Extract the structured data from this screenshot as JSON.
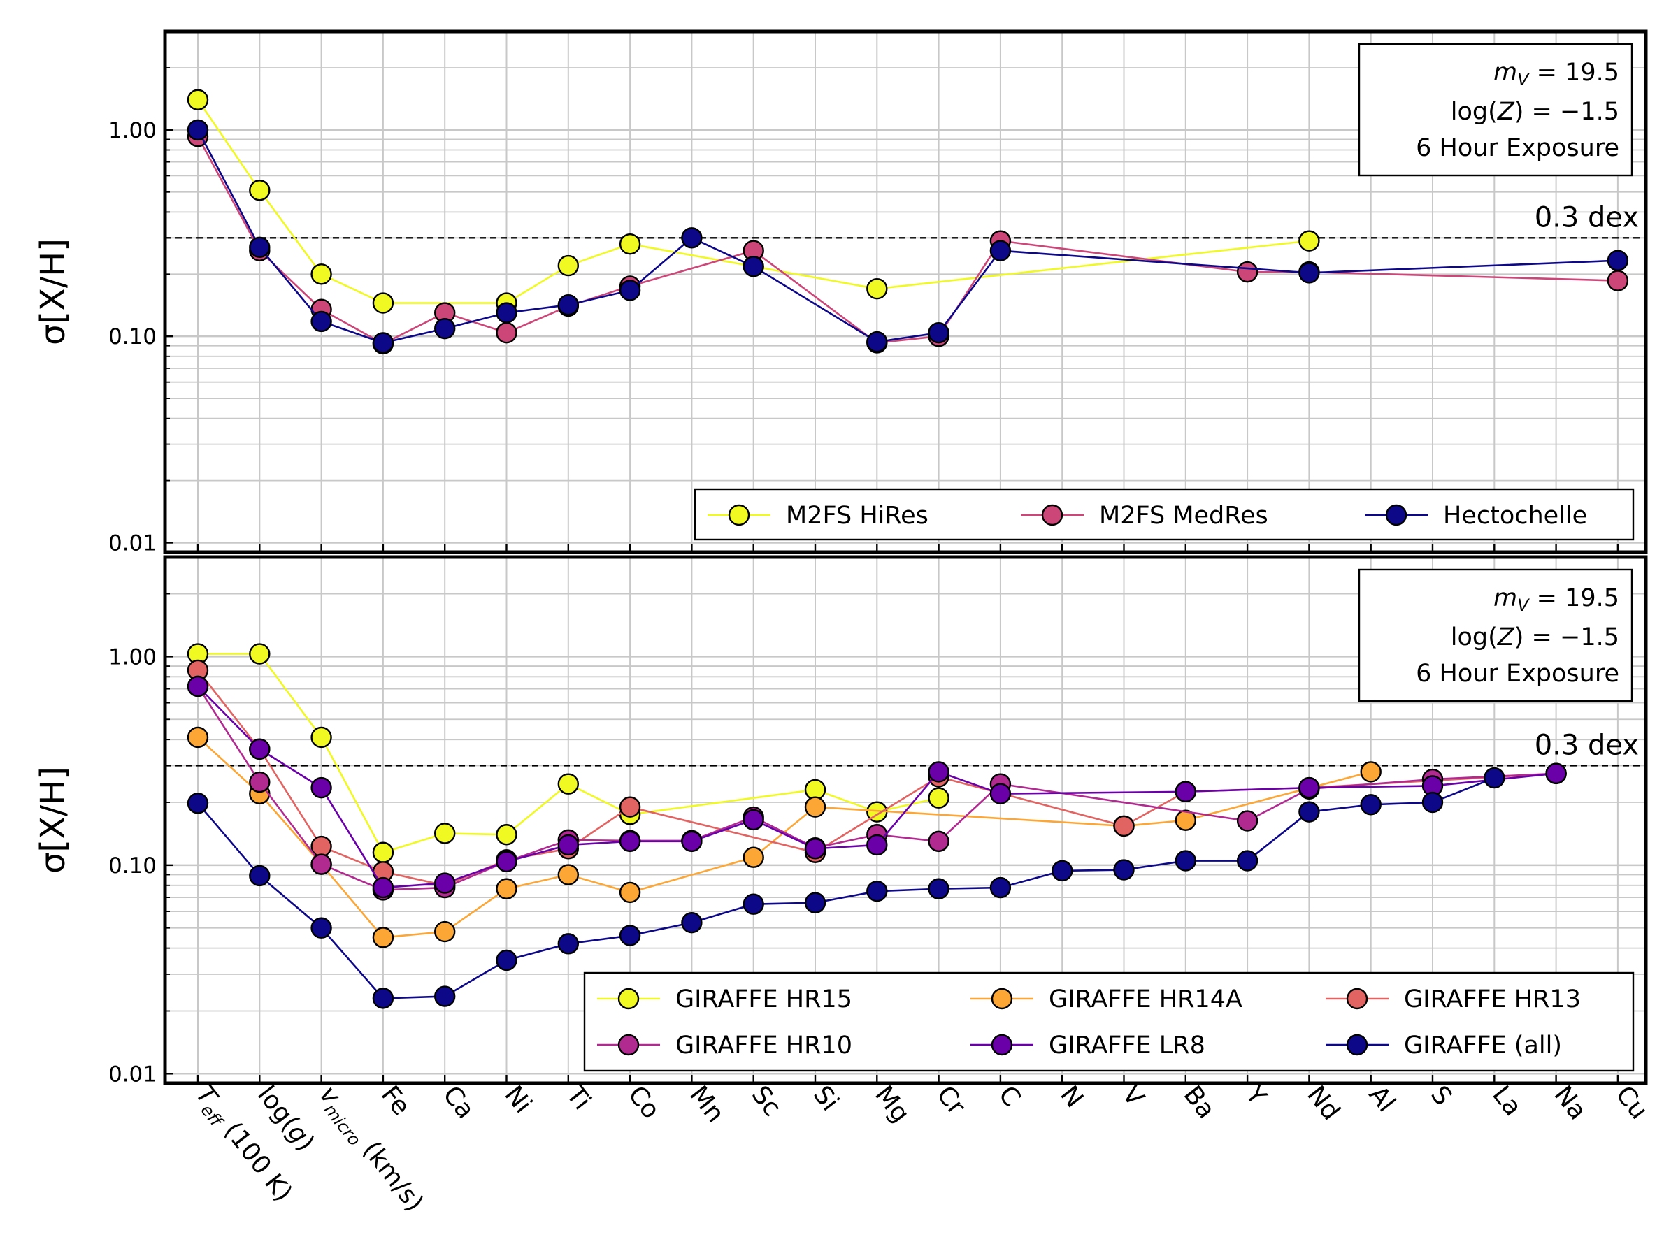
{
  "figure": {
    "x_labels": [
      {
        "main": "T",
        "sub": "eff",
        "rest": " (100 K)"
      },
      {
        "main": "log(",
        "ital": "g",
        "rest": ")"
      },
      {
        "main": "v",
        "sub": "micro",
        "rest": " (km/s)"
      },
      {
        "main": "Fe"
      },
      {
        "main": "Ca"
      },
      {
        "main": "Ni"
      },
      {
        "main": "Ti"
      },
      {
        "main": "Co"
      },
      {
        "main": "Mn"
      },
      {
        "main": "Sc"
      },
      {
        "main": "Si"
      },
      {
        "main": "Mg"
      },
      {
        "main": "Cr"
      },
      {
        "main": "C"
      },
      {
        "main": "N"
      },
      {
        "main": "V"
      },
      {
        "main": "Ba"
      },
      {
        "main": "Y"
      },
      {
        "main": "Nd"
      },
      {
        "main": "Al"
      },
      {
        "main": "S"
      },
      {
        "main": "La"
      },
      {
        "main": "Na"
      },
      {
        "main": "Cu"
      }
    ]
  },
  "chart_data": [
    {
      "type": "line",
      "ylabel": "σ[X/H]",
      "yscale": "log",
      "ylim": [
        0.009,
        3.0
      ],
      "y_ticks": [
        0.01,
        0.1,
        1.0
      ],
      "y_tick_labels": [
        "0.01",
        "0.10",
        "1.00"
      ],
      "grid": true,
      "categories": [
        "Teff (100 K)",
        "log(g)",
        "vmicro (km/s)",
        "Fe",
        "Ca",
        "Ni",
        "Ti",
        "Co",
        "Mn",
        "Sc",
        "Si",
        "Mg",
        "Cr",
        "C",
        "N",
        "V",
        "Ba",
        "Y",
        "Nd",
        "Al",
        "S",
        "La",
        "Na",
        "Cu"
      ],
      "threshold": {
        "value": 0.3,
        "label": "0.3 dex"
      },
      "info_box": {
        "line1": "= 19.5",
        "line2": "log(",
        "line2b": ") = −1.5",
        "line3": "6 Hour Exposure",
        "mag_symbol": "m",
        "mag_sub": "V",
        "z_symbol": "Z"
      },
      "legend": {
        "location": "lower-right",
        "columns": 3
      },
      "series": [
        {
          "name": "M2FS HiRes",
          "color": "#f0f921",
          "x": [
            "Teff (100 K)",
            "log(g)",
            "vmicro (km/s)",
            "Fe",
            "Ni",
            "Ti",
            "Co",
            "Mg",
            "Nd"
          ],
          "values": [
            1.4,
            0.51,
            0.2,
            0.145,
            0.145,
            0.22,
            0.28,
            0.17,
            0.29
          ]
        },
        {
          "name": "M2FS MedRes",
          "color": "#cc4778",
          "x": [
            "Teff (100 K)",
            "log(g)",
            "vmicro (km/s)",
            "Fe",
            "Ca",
            "Ni",
            "Ti",
            "Co",
            "Sc",
            "Mg",
            "Cr",
            "C",
            "Y",
            "Nd",
            "Cu"
          ],
          "values": [
            0.93,
            0.26,
            0.135,
            0.092,
            0.13,
            0.104,
            0.14,
            0.175,
            0.26,
            0.093,
            0.1,
            0.29,
            0.205,
            0.205,
            0.186
          ]
        },
        {
          "name": "Hectochelle",
          "color": "#0d0887",
          "x": [
            "Teff (100 K)",
            "log(g)",
            "vmicro (km/s)",
            "Fe",
            "Ca",
            "Ni",
            "Ti",
            "Co",
            "Mn",
            "Sc",
            "Mg",
            "Cr",
            "C",
            "Nd",
            "Cu"
          ],
          "values": [
            1.0,
            0.27,
            0.118,
            0.093,
            0.109,
            0.13,
            0.142,
            0.167,
            0.3,
            0.218,
            0.094,
            0.104,
            0.26,
            0.203,
            0.233
          ]
        }
      ]
    },
    {
      "type": "line",
      "ylabel": "σ[X/H]",
      "yscale": "log",
      "ylim": [
        0.009,
        3.0
      ],
      "y_ticks": [
        0.01,
        0.1,
        1.0
      ],
      "y_tick_labels": [
        "0.01",
        "0.10",
        "1.00"
      ],
      "grid": true,
      "categories": [
        "Teff (100 K)",
        "log(g)",
        "vmicro (km/s)",
        "Fe",
        "Ca",
        "Ni",
        "Ti",
        "Co",
        "Mn",
        "Sc",
        "Si",
        "Mg",
        "Cr",
        "C",
        "N",
        "V",
        "Ba",
        "Y",
        "Nd",
        "Al",
        "S",
        "La",
        "Na",
        "Cu"
      ],
      "threshold": {
        "value": 0.3,
        "label": "0.3 dex"
      },
      "info_box": {
        "line1": "= 19.5",
        "line2": "log(",
        "line2b": ") = −1.5",
        "line3": "6 Hour Exposure",
        "mag_symbol": "m",
        "mag_sub": "V",
        "z_symbol": "Z"
      },
      "legend": {
        "location": "lower-right",
        "columns": 3
      },
      "series": [
        {
          "name": "GIRAFFE HR15",
          "color": "#f0f921",
          "x": [
            "Teff (100 K)",
            "log(g)",
            "vmicro (km/s)",
            "Fe",
            "Ca",
            "Ni",
            "Ti",
            "Co",
            "Si",
            "Mg",
            "Cr"
          ],
          "values": [
            1.03,
            1.03,
            0.41,
            0.115,
            0.142,
            0.14,
            0.245,
            0.175,
            0.23,
            0.18,
            0.21
          ]
        },
        {
          "name": "GIRAFFE HR14A",
          "color": "#fca636",
          "x": [
            "Teff (100 K)",
            "log(g)",
            "vmicro (km/s)",
            "Fe",
            "Ca",
            "Ni",
            "Ti",
            "Co",
            "Sc",
            "Si",
            "V",
            "Ba",
            "Al"
          ],
          "values": [
            0.41,
            0.22,
            0.101,
            0.045,
            0.048,
            0.077,
            0.09,
            0.074,
            0.109,
            0.19,
            0.154,
            0.164,
            0.28
          ]
        },
        {
          "name": "GIRAFFE HR13",
          "color": "#e16462",
          "x": [
            "Teff (100 K)",
            "log(g)",
            "vmicro (km/s)",
            "Fe",
            "Ca",
            "Ni",
            "Ti",
            "Co",
            "Si",
            "Cr",
            "V",
            "Ba",
            "Nd",
            "Na"
          ],
          "values": [
            0.86,
            0.36,
            0.123,
            0.093,
            0.08,
            0.106,
            0.12,
            0.19,
            0.115,
            0.265,
            0.154,
            0.225,
            0.235,
            0.275
          ]
        },
        {
          "name": "GIRAFFE HR10",
          "color": "#b12a90",
          "x": [
            "Teff (100 K)",
            "log(g)",
            "vmicro (km/s)",
            "Fe",
            "Ca",
            "Ni",
            "Ti",
            "Co",
            "Mn",
            "Sc",
            "Si",
            "Mg",
            "Cr",
            "C",
            "Y",
            "Nd",
            "S",
            "Na"
          ],
          "values": [
            0.72,
            0.25,
            0.101,
            0.076,
            0.078,
            0.104,
            0.132,
            0.131,
            0.131,
            0.17,
            0.121,
            0.14,
            0.13,
            0.245,
            0.163,
            0.232,
            0.258,
            0.275
          ]
        },
        {
          "name": "GIRAFFE LR8",
          "color": "#6a00a8",
          "x": [
            "Teff (100 K)",
            "log(g)",
            "vmicro (km/s)",
            "Fe",
            "Ca",
            "Ni",
            "Ti",
            "Co",
            "Mn",
            "Sc",
            "Si",
            "Mg",
            "Cr",
            "C",
            "Ba",
            "Nd",
            "S",
            "Na"
          ],
          "values": [
            0.72,
            0.36,
            0.235,
            0.078,
            0.082,
            0.104,
            0.125,
            0.13,
            0.13,
            0.165,
            0.12,
            0.125,
            0.28,
            0.22,
            0.225,
            0.235,
            0.24,
            0.275
          ]
        },
        {
          "name": "GIRAFFE (all)",
          "color": "#0d0887",
          "x": [
            "Teff (100 K)",
            "log(g)",
            "vmicro (km/s)",
            "Fe",
            "Ca",
            "Ni",
            "Ti",
            "Co",
            "Mn",
            "Sc",
            "Si",
            "Mg",
            "Cr",
            "C",
            "N",
            "V",
            "Ba",
            "Y",
            "Nd",
            "Al",
            "S",
            "La"
          ],
          "values": [
            0.198,
            0.089,
            0.05,
            0.023,
            0.0235,
            0.035,
            0.042,
            0.046,
            0.053,
            0.065,
            0.066,
            0.075,
            0.077,
            0.078,
            0.094,
            0.095,
            0.105,
            0.105,
            0.18,
            0.195,
            0.2,
            0.262
          ]
        }
      ]
    }
  ]
}
